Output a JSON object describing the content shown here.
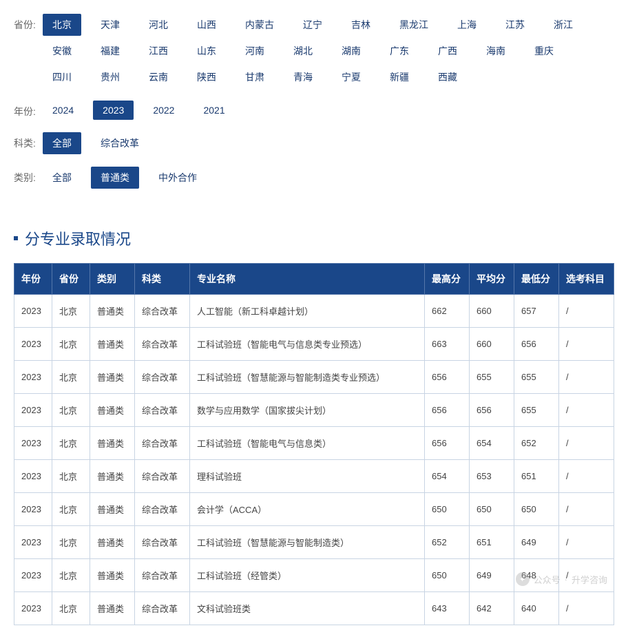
{
  "filters": {
    "province": {
      "label": "省份:",
      "options": [
        "北京",
        "天津",
        "河北",
        "山西",
        "内蒙古",
        "辽宁",
        "吉林",
        "黑龙江",
        "上海",
        "江苏",
        "浙江",
        "安徽",
        "福建",
        "江西",
        "山东",
        "河南",
        "湖北",
        "湖南",
        "广东",
        "广西",
        "海南",
        "重庆",
        "四川",
        "贵州",
        "云南",
        "陕西",
        "甘肃",
        "青海",
        "宁夏",
        "新疆",
        "西藏"
      ],
      "active": "北京"
    },
    "year": {
      "label": "年份:",
      "options": [
        "2024",
        "2023",
        "2022",
        "2021"
      ],
      "active": "2023"
    },
    "subject": {
      "label": "科类:",
      "options": [
        "全部",
        "综合改革"
      ],
      "active": "全部"
    },
    "category": {
      "label": "类别:",
      "options": [
        "全部",
        "普通类",
        "中外合作"
      ],
      "active": "普通类"
    }
  },
  "section_title": "分专业录取情况",
  "table": {
    "columns": [
      "年份",
      "省份",
      "类别",
      "科类",
      "专业名称",
      "最高分",
      "平均分",
      "最低分",
      "选考科目"
    ],
    "rows": [
      [
        "2023",
        "北京",
        "普通类",
        "综合改革",
        "人工智能（新工科卓越计划）",
        "662",
        "660",
        "657",
        "/"
      ],
      [
        "2023",
        "北京",
        "普通类",
        "综合改革",
        "工科试验班（智能电气与信息类专业预选）",
        "663",
        "660",
        "656",
        "/"
      ],
      [
        "2023",
        "北京",
        "普通类",
        "综合改革",
        "工科试验班（智慧能源与智能制造类专业预选）",
        "656",
        "655",
        "655",
        "/"
      ],
      [
        "2023",
        "北京",
        "普通类",
        "综合改革",
        "数学与应用数学（国家拔尖计划）",
        "656",
        "656",
        "655",
        "/"
      ],
      [
        "2023",
        "北京",
        "普通类",
        "综合改革",
        "工科试验班（智能电气与信息类）",
        "656",
        "654",
        "652",
        "/"
      ],
      [
        "2023",
        "北京",
        "普通类",
        "综合改革",
        "理科试验班",
        "654",
        "653",
        "651",
        "/"
      ],
      [
        "2023",
        "北京",
        "普通类",
        "综合改革",
        "会计学（ACCA）",
        "650",
        "650",
        "650",
        "/"
      ],
      [
        "2023",
        "北京",
        "普通类",
        "综合改革",
        "工科试验班（智慧能源与智能制造类）",
        "652",
        "651",
        "649",
        "/"
      ],
      [
        "2023",
        "北京",
        "普通类",
        "综合改革",
        "工科试验班（经管类）",
        "650",
        "649",
        "648",
        "/"
      ],
      [
        "2023",
        "北京",
        "普通类",
        "综合改革",
        "文科试验班类",
        "643",
        "642",
        "640",
        "/"
      ]
    ]
  },
  "watermark": {
    "source": "公众号",
    "name": "升学咨询"
  },
  "colors": {
    "primary": "#1a4789",
    "border": "#c8d4e3",
    "text": "#333"
  }
}
